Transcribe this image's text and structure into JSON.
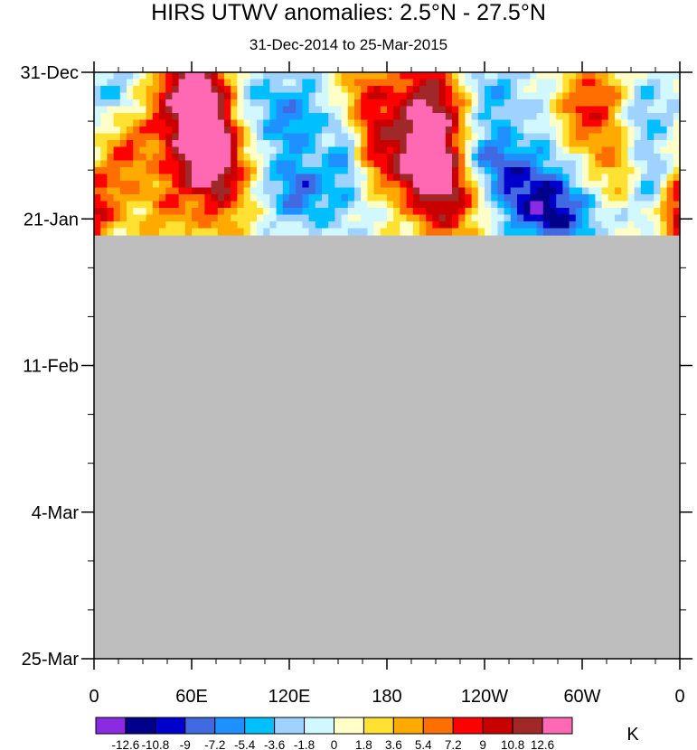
{
  "chart_data": {
    "type": "heatmap",
    "title": "HIRS UTWV anomalies: 2.5°N - 27.5°N",
    "subtitle": "31-Dec-2014 to 25-Mar-2015",
    "x_tick_labels": [
      "0",
      "60E",
      "120E",
      "180",
      "120W",
      "60W",
      "0"
    ],
    "x_ticks_deg": [
      0,
      60,
      120,
      180,
      240,
      300,
      360
    ],
    "y_tick_labels": [
      "31-Dec",
      "21-Jan",
      "11-Feb",
      "4-Mar",
      "25-Mar"
    ],
    "y_ticks_day": [
      0,
      21,
      42,
      63,
      84
    ],
    "xlim": [
      0,
      360
    ],
    "ylim_days": [
      0,
      84
    ],
    "data_end_day": 23.3,
    "missing_color": "#bebebe",
    "colorbar": {
      "unit": "K",
      "levels": [
        "-12.6",
        "-10.8",
        "-9",
        "-7.2",
        "-5.4",
        "-3.6",
        "-1.8",
        "0",
        "1.8",
        "3.6",
        "5.4",
        "7.2",
        "9",
        "10.8",
        "12.6"
      ],
      "colors": [
        "#8a2be2",
        "#00008b",
        "#0000cd",
        "#4169e1",
        "#1e90ff",
        "#00bfff",
        "#a0d2ff",
        "#d2f8ff",
        "#ffffc8",
        "#ffe132",
        "#ffaa00",
        "#ff6e00",
        "#ff0000",
        "#c80000",
        "#a02828",
        "#ff69b4"
      ]
    },
    "features": [
      {
        "lon": 65,
        "day": 2,
        "v": 10,
        "rx": 16,
        "ry": 4
      },
      {
        "lon": 70,
        "day": 11,
        "v": 12,
        "rx": 11,
        "ry": 4
      },
      {
        "lon": 55,
        "day": 7,
        "v": 8,
        "rx": 18,
        "ry": 6
      },
      {
        "lon": 80,
        "day": 16,
        "v": 7,
        "rx": 12,
        "ry": 6
      },
      {
        "lon": 20,
        "day": 11,
        "v": 6,
        "rx": 12,
        "ry": 4
      },
      {
        "lon": 5,
        "day": 19,
        "v": 6,
        "rx": 10,
        "ry": 4
      },
      {
        "lon": 45,
        "day": 19,
        "v": 5,
        "rx": 14,
        "ry": 5
      },
      {
        "lon": 95,
        "day": 3,
        "v": -4,
        "rx": 12,
        "ry": 4
      },
      {
        "lon": 120,
        "day": 8,
        "v": -5,
        "rx": 12,
        "ry": 4
      },
      {
        "lon": 125,
        "day": 17,
        "v": -7,
        "rx": 12,
        "ry": 3
      },
      {
        "lon": 140,
        "day": 4,
        "v": -3,
        "rx": 20,
        "ry": 4
      },
      {
        "lon": 150,
        "day": 19,
        "v": -2,
        "rx": 20,
        "ry": 4
      },
      {
        "lon": 165,
        "day": 3,
        "v": 7,
        "rx": 15,
        "ry": 4
      },
      {
        "lon": 170,
        "day": 10,
        "v": 5,
        "rx": 10,
        "ry": 4
      },
      {
        "lon": 155,
        "day": 12,
        "v": -6,
        "rx": 8,
        "ry": 4
      },
      {
        "lon": 205,
        "day": 5,
        "v": 11,
        "rx": 16,
        "ry": 5
      },
      {
        "lon": 215,
        "day": 16,
        "v": 12,
        "rx": 15,
        "ry": 6
      },
      {
        "lon": 195,
        "day": 13,
        "v": 8,
        "rx": 18,
        "ry": 4
      },
      {
        "lon": 235,
        "day": 12,
        "v": -8,
        "rx": 12,
        "ry": 3
      },
      {
        "lon": 245,
        "day": 3,
        "v": -5,
        "rx": 12,
        "ry": 4
      },
      {
        "lon": 255,
        "day": 15,
        "v": -6,
        "rx": 10,
        "ry": 4
      },
      {
        "lon": 275,
        "day": 18,
        "v": -9,
        "rx": 14,
        "ry": 4
      },
      {
        "lon": 290,
        "day": 21,
        "v": -6,
        "rx": 16,
        "ry": 3
      },
      {
        "lon": 280,
        "day": 7,
        "v": -4,
        "rx": 10,
        "ry": 4
      },
      {
        "lon": 295,
        "day": 6,
        "v": 7,
        "rx": 14,
        "ry": 4
      },
      {
        "lon": 315,
        "day": 3,
        "v": 5,
        "rx": 12,
        "ry": 4
      },
      {
        "lon": 320,
        "day": 13,
        "v": 5,
        "rx": 10,
        "ry": 4
      },
      {
        "lon": 335,
        "day": 6,
        "v": -4,
        "rx": 12,
        "ry": 4
      },
      {
        "lon": 345,
        "day": 16,
        "v": -5,
        "rx": 10,
        "ry": 4
      },
      {
        "lon": 355,
        "day": 20,
        "v": 6,
        "rx": 8,
        "ry": 4
      },
      {
        "lon": 15,
        "day": 3,
        "v": -4,
        "rx": 12,
        "ry": 4
      },
      {
        "lon": 35,
        "day": 14,
        "v": -2,
        "rx": 8,
        "ry": 3
      }
    ]
  }
}
